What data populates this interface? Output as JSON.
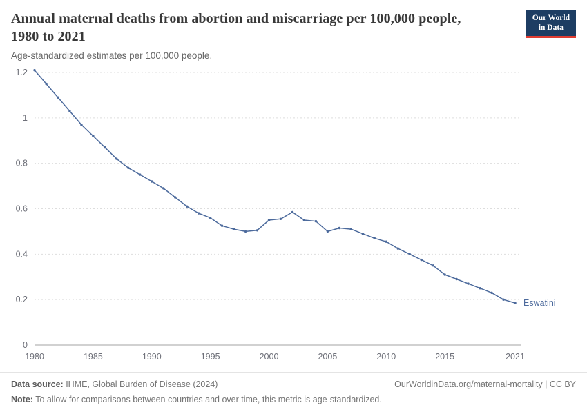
{
  "header": {
    "title": "Annual maternal deaths from abortion and miscarriage per 100,000 people, 1980 to 2021",
    "subtitle": "Age-standardized estimates per 100,000 people.",
    "logo": {
      "line1": "Our World",
      "line2": "in Data"
    }
  },
  "chart_data": {
    "type": "line",
    "title": "Annual maternal deaths from abortion and miscarriage per 100,000 people, 1980 to 2021",
    "xlabel": "",
    "ylabel": "",
    "xlim": [
      1980,
      2021
    ],
    "ylim": [
      0,
      1.2
    ],
    "x_ticks": [
      1980,
      1985,
      1990,
      1995,
      2000,
      2005,
      2010,
      2015,
      2021
    ],
    "y_ticks": [
      0,
      0.2,
      0.4,
      0.6,
      0.8,
      1,
      1.2
    ],
    "grid": "horizontal-dashed",
    "legend_position": "end-of-line-label",
    "series": [
      {
        "name": "Eswatini",
        "x": [
          1980,
          1981,
          1982,
          1983,
          1984,
          1985,
          1986,
          1987,
          1988,
          1989,
          1990,
          1991,
          1992,
          1993,
          1994,
          1995,
          1996,
          1997,
          1998,
          1999,
          2000,
          2001,
          2002,
          2003,
          2004,
          2005,
          2006,
          2007,
          2008,
          2009,
          2010,
          2011,
          2012,
          2013,
          2014,
          2015,
          2016,
          2017,
          2018,
          2019,
          2020,
          2021
        ],
        "values": [
          1.21,
          1.15,
          1.09,
          1.03,
          0.97,
          0.92,
          0.87,
          0.82,
          0.78,
          0.75,
          0.72,
          0.69,
          0.65,
          0.61,
          0.58,
          0.56,
          0.525,
          0.51,
          0.5,
          0.505,
          0.55,
          0.555,
          0.585,
          0.55,
          0.545,
          0.5,
          0.515,
          0.51,
          0.49,
          0.47,
          0.455,
          0.425,
          0.4,
          0.375,
          0.35,
          0.31,
          0.29,
          0.27,
          0.25,
          0.23,
          0.2,
          0.185
        ]
      }
    ]
  },
  "colors": {
    "line": "#4c6a9c",
    "grid": "#dddddd",
    "axis_line": "#a3a3a3",
    "tick_label": "#6e7079",
    "logo_bg": "#1d3d63",
    "logo_accent": "#e03c31"
  },
  "footer": {
    "source_label": "Data source:",
    "source_text": " IHME, Global Burden of Disease (2024)",
    "rights": "OurWorldinData.org/maternal-mortality | CC BY",
    "note_label": "Note:",
    "note_text": " To allow for comparisons between countries and over time, this metric is age-standardized."
  }
}
